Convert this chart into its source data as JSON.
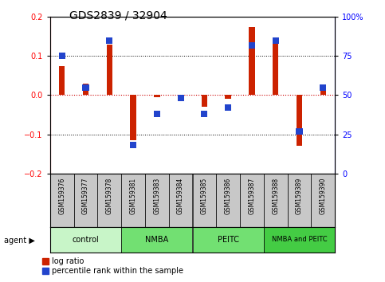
{
  "title": "GDS2839 / 32904",
  "samples": [
    "GSM159376",
    "GSM159377",
    "GSM159378",
    "GSM159381",
    "GSM159383",
    "GSM159384",
    "GSM159385",
    "GSM159386",
    "GSM159387",
    "GSM159388",
    "GSM159389",
    "GSM159390"
  ],
  "log_ratio": [
    0.075,
    0.03,
    0.13,
    -0.115,
    -0.005,
    -0.01,
    -0.03,
    -0.01,
    0.175,
    0.145,
    -0.13,
    0.02
  ],
  "percentile": [
    75,
    55,
    85,
    18,
    38,
    48,
    38,
    42,
    82,
    85,
    27,
    55
  ],
  "groups": [
    {
      "label": "control",
      "start": 0,
      "end": 3,
      "color": "#c8f5c8"
    },
    {
      "label": "NMBA",
      "start": 3,
      "end": 6,
      "color": "#72e072"
    },
    {
      "label": "PEITC",
      "start": 6,
      "end": 9,
      "color": "#72e072"
    },
    {
      "label": "NMBA and PEITC",
      "start": 9,
      "end": 12,
      "color": "#44cc44"
    }
  ],
  "ylim_left": [
    -0.2,
    0.2
  ],
  "ylim_right": [
    0,
    100
  ],
  "yticks_left": [
    -0.2,
    -0.1,
    0,
    0.1,
    0.2
  ],
  "yticks_right": [
    0,
    25,
    50,
    75,
    100
  ],
  "bar_color_red": "#cc2200",
  "bar_color_blue": "#2244cc",
  "sample_box_color": "#c8c8c8",
  "title_fontsize": 10,
  "tick_fontsize": 7,
  "bar_width": 0.25
}
